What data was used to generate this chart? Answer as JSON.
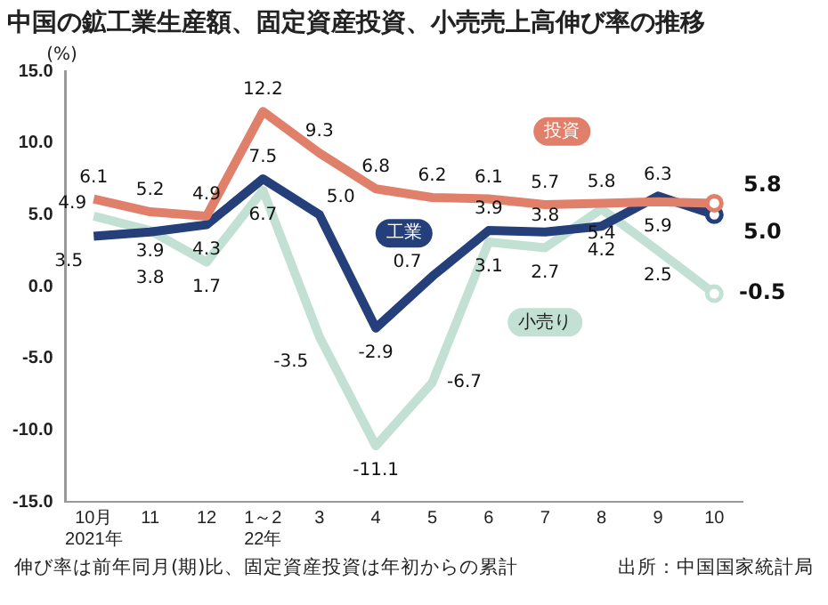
{
  "chart_data": {
    "type": "line",
    "title": "中国の鉱工業生産額、固定資産投資、小売売上高伸び率の推移",
    "ylabel": "(%)",
    "categories": [
      "10月\n2021年",
      "11",
      "12",
      "1～2\n22年",
      "3",
      "4",
      "5",
      "6",
      "7",
      "8",
      "9",
      "10"
    ],
    "series": [
      {
        "name": "投資",
        "color": "#e07f6a",
        "values": [
          6.1,
          5.2,
          4.9,
          12.2,
          9.3,
          6.8,
          6.2,
          6.1,
          5.7,
          5.8,
          5.9,
          5.8
        ],
        "value_labels": [
          "6.1",
          "5.2",
          "4.9",
          "12.2",
          "9.3",
          "6.8",
          "6.2",
          "6.1",
          "5.7",
          "5.8",
          "5.9",
          "5.8"
        ]
      },
      {
        "name": "工業",
        "color": "#253f7a",
        "values": [
          3.5,
          3.8,
          4.3,
          7.5,
          5,
          -2.9,
          0.7,
          3.9,
          3.8,
          4.2,
          6.3,
          5
        ],
        "value_labels": [
          "3.5",
          "3.8",
          "4.3",
          "7.5",
          "5.0",
          "-2.9",
          "0.7",
          "3.9",
          "3.8",
          "4.2",
          "6.3",
          "5.0"
        ]
      },
      {
        "name": "小売り",
        "color": "#c2e0d4",
        "values": [
          4.9,
          3.9,
          1.7,
          6.7,
          -3.5,
          -11.1,
          -6.7,
          3.1,
          2.7,
          5.4,
          2.5,
          -0.5
        ],
        "value_labels": [
          "4.9",
          "3.9",
          "1.7",
          "6.7",
          "-3.5",
          "-11.1",
          "-6.7",
          "3.1",
          "2.7",
          "5.4",
          "2.5",
          "-0.5"
        ]
      }
    ],
    "ylim": [
      -15,
      15
    ],
    "yticks": [
      {
        "value": -15,
        "label": "-15.0"
      },
      {
        "value": -10,
        "label": "-10.0"
      },
      {
        "value": -5,
        "label": "-5.0"
      },
      {
        "value": 0,
        "label": "0.0"
      },
      {
        "value": 5,
        "label": "5.0"
      },
      {
        "value": 10,
        "label": "10.0"
      },
      {
        "value": 15,
        "label": "15.0"
      }
    ],
    "grid": false,
    "legend": false,
    "line_style": "solid",
    "annotations": [
      "伸び率は前年同月(期)比、固定資産投資は年初からの累計",
      "出所：中国国家統計局"
    ]
  }
}
